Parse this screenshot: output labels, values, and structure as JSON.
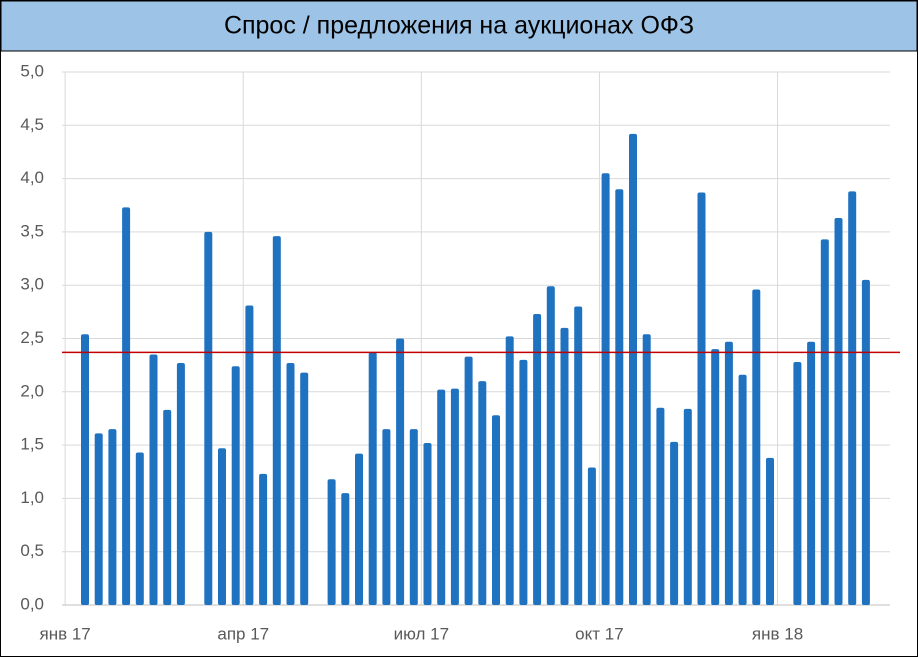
{
  "chart_data": {
    "type": "bar",
    "title": "Спрос / предложения на аукционах ОФЗ",
    "categories": [
      "янв 17",
      null,
      null,
      null,
      null,
      null,
      null,
      null,
      null,
      null,
      null,
      null,
      null,
      "апр 17",
      null,
      null,
      null,
      null,
      null,
      null,
      null,
      null,
      null,
      null,
      null,
      null,
      "июл 17",
      null,
      null,
      null,
      null,
      null,
      null,
      null,
      null,
      null,
      null,
      null,
      null,
      "окт 17",
      null,
      null,
      null,
      null,
      null,
      null,
      null,
      null,
      null,
      null,
      null,
      null,
      "янв 18",
      null,
      null,
      null,
      null,
      null
    ],
    "values": [
      2.54,
      1.61,
      1.65,
      3.73,
      1.43,
      2.35,
      1.83,
      2.27,
      null,
      3.5,
      1.47,
      2.24,
      2.81,
      1.23,
      3.46,
      2.27,
      2.18,
      null,
      1.18,
      1.05,
      1.42,
      2.37,
      1.65,
      2.5,
      1.65,
      1.52,
      2.02,
      2.03,
      2.33,
      2.1,
      1.78,
      2.52,
      2.3,
      2.73,
      2.99,
      2.6,
      2.8,
      1.29,
      4.05,
      3.9,
      4.42,
      2.54,
      1.85,
      1.53,
      1.84,
      3.87,
      2.4,
      2.47,
      2.16,
      2.96,
      1.38,
      null,
      2.28,
      2.47,
      3.43,
      3.63,
      3.88,
      3.05
    ],
    "color": "#1f72c0",
    "ylim": [
      0,
      5
    ],
    "yticks": [
      {
        "value": 0,
        "label": "0,0"
      },
      {
        "value": 0.5,
        "label": "0,5"
      },
      {
        "value": 1,
        "label": "1,0"
      },
      {
        "value": 1.5,
        "label": "1,5"
      },
      {
        "value": 2,
        "label": "2,0"
      },
      {
        "value": 2.5,
        "label": "2,5"
      },
      {
        "value": 3,
        "label": "3,0"
      },
      {
        "value": 3.5,
        "label": "3,5"
      },
      {
        "value": 4,
        "label": "4,0"
      },
      {
        "value": 4.5,
        "label": "4,5"
      },
      {
        "value": 5,
        "label": "5,0"
      }
    ],
    "reference_line": {
      "value": 2.37,
      "color": "#c00000"
    },
    "grid": true
  }
}
